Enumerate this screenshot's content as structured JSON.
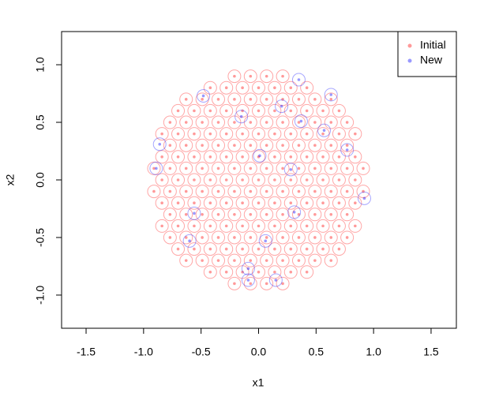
{
  "chart_data": {
    "type": "scatter",
    "xlabel": "x1",
    "ylabel": "x2",
    "xlim": [
      -1.713,
      1.72
    ],
    "ylim": [
      -1.288,
      1.288
    ],
    "xticks": [
      -1.5,
      {
        "value": -1,
        "label": "-1.0"
      },
      -0.5,
      {
        "value": 0,
        "label": "0.0"
      },
      0.5,
      {
        "value": 1,
        "label": "1.0"
      },
      1.5
    ],
    "yticks": [
      {
        "value": -1,
        "label": "-1.0"
      },
      -0.5,
      {
        "value": 0,
        "label": "0.0"
      },
      0.5,
      {
        "value": 1,
        "label": "1.0"
      }
    ],
    "legend": "top-right",
    "series": [
      {
        "name": "Initial",
        "color": "#ff0000",
        "x": [
          -0.21,
          -0.07,
          0.07,
          0.21,
          -0.42,
          -0.28,
          -0.14,
          0,
          0.14,
          0.28,
          0.42,
          -0.63,
          -0.49,
          -0.35,
          -0.21,
          -0.07,
          0.07,
          0.21,
          0.35,
          0.49,
          0.63,
          -0.7,
          -0.56,
          -0.42,
          -0.28,
          -0.14,
          0,
          0.14,
          0.28,
          0.42,
          0.56,
          0.7,
          -0.77,
          -0.63,
          -0.49,
          -0.35,
          -0.21,
          -0.07,
          0.07,
          0.21,
          0.35,
          0.49,
          0.63,
          0.77,
          -0.84,
          -0.7,
          -0.56,
          -0.42,
          -0.28,
          -0.14,
          0,
          0.14,
          0.28,
          0.42,
          0.56,
          0.7,
          0.84,
          -0.77,
          -0.63,
          -0.49,
          -0.35,
          -0.21,
          -0.07,
          0.07,
          0.21,
          0.35,
          0.49,
          0.63,
          0.77,
          -0.84,
          -0.7,
          -0.56,
          -0.42,
          -0.28,
          -0.14,
          0,
          0.14,
          0.28,
          0.42,
          0.56,
          0.7,
          0.84,
          -0.91,
          -0.77,
          -0.63,
          -0.49,
          -0.35,
          -0.21,
          -0.07,
          0.07,
          0.21,
          0.35,
          0.49,
          0.63,
          0.77,
          0.91,
          -0.84,
          -0.7,
          -0.56,
          -0.42,
          -0.28,
          -0.14,
          0,
          0.14,
          0.28,
          0.42,
          0.56,
          0.7,
          0.84,
          -0.91,
          -0.77,
          -0.63,
          -0.49,
          -0.35,
          -0.21,
          -0.07,
          0.07,
          0.21,
          0.35,
          0.49,
          0.63,
          0.77,
          0.91,
          -0.84,
          -0.7,
          -0.56,
          -0.42,
          -0.28,
          -0.14,
          0,
          0.14,
          0.28,
          0.42,
          0.56,
          0.7,
          0.84,
          -0.77,
          -0.63,
          -0.49,
          -0.35,
          -0.21,
          -0.07,
          0.07,
          0.21,
          0.35,
          0.49,
          0.63,
          0.77,
          -0.84,
          -0.7,
          -0.56,
          -0.42,
          -0.28,
          -0.14,
          0,
          0.14,
          0.28,
          0.42,
          0.56,
          0.7,
          0.84,
          -0.77,
          -0.63,
          -0.49,
          -0.35,
          -0.21,
          -0.07,
          0.07,
          0.21,
          0.35,
          0.49,
          0.63,
          0.77,
          -0.7,
          -0.56,
          -0.42,
          -0.28,
          -0.14,
          0,
          0.14,
          0.28,
          0.42,
          0.56,
          0.7,
          -0.63,
          -0.49,
          -0.35,
          -0.21,
          -0.07,
          0.07,
          0.21,
          0.35,
          0.49,
          0.63,
          -0.42,
          -0.28,
          -0.14,
          0,
          0.14,
          0.28,
          0.42,
          -0.21,
          -0.07,
          0.07,
          0.21
        ],
        "values": [
          0.9,
          0.9,
          0.9,
          0.9,
          0.8,
          0.8,
          0.8,
          0.8,
          0.8,
          0.8,
          0.8,
          0.7,
          0.7,
          0.7,
          0.7,
          0.7,
          0.7,
          0.7,
          0.7,
          0.7,
          0.7,
          0.6,
          0.6,
          0.6,
          0.6,
          0.6,
          0.6,
          0.6,
          0.6,
          0.6,
          0.6,
          0.6,
          0.5,
          0.5,
          0.5,
          0.5,
          0.5,
          0.5,
          0.5,
          0.5,
          0.5,
          0.5,
          0.5,
          0.5,
          0.4,
          0.4,
          0.4,
          0.4,
          0.4,
          0.4,
          0.4,
          0.4,
          0.4,
          0.4,
          0.4,
          0.4,
          0.4,
          0.3,
          0.3,
          0.3,
          0.3,
          0.3,
          0.3,
          0.3,
          0.3,
          0.3,
          0.3,
          0.3,
          0.3,
          0.2,
          0.2,
          0.2,
          0.2,
          0.2,
          0.2,
          0.2,
          0.2,
          0.2,
          0.2,
          0.2,
          0.2,
          0.2,
          0.1,
          0.1,
          0.1,
          0.1,
          0.1,
          0.1,
          0.1,
          0.1,
          0.1,
          0.1,
          0.1,
          0.1,
          0.1,
          0.1,
          0,
          0,
          0,
          0,
          0,
          0,
          0,
          0,
          0,
          0,
          0,
          0,
          0,
          -0.1,
          -0.1,
          -0.1,
          -0.1,
          -0.1,
          -0.1,
          -0.1,
          -0.1,
          -0.1,
          -0.1,
          -0.1,
          -0.1,
          -0.1,
          -0.1,
          -0.2,
          -0.2,
          -0.2,
          -0.2,
          -0.2,
          -0.2,
          -0.2,
          -0.2,
          -0.2,
          -0.2,
          -0.2,
          -0.2,
          -0.2,
          -0.3,
          -0.3,
          -0.3,
          -0.3,
          -0.3,
          -0.3,
          -0.3,
          -0.3,
          -0.3,
          -0.3,
          -0.3,
          -0.3,
          -0.4,
          -0.4,
          -0.4,
          -0.4,
          -0.4,
          -0.4,
          -0.4,
          -0.4,
          -0.4,
          -0.4,
          -0.4,
          -0.4,
          -0.4,
          -0.5,
          -0.5,
          -0.5,
          -0.5,
          -0.5,
          -0.5,
          -0.5,
          -0.5,
          -0.5,
          -0.5,
          -0.5,
          -0.5,
          -0.6,
          -0.6,
          -0.6,
          -0.6,
          -0.6,
          -0.6,
          -0.6,
          -0.6,
          -0.6,
          -0.6,
          -0.6,
          -0.7,
          -0.7,
          -0.7,
          -0.7,
          -0.7,
          -0.7,
          -0.7,
          -0.7,
          -0.7,
          -0.7,
          -0.8,
          -0.8,
          -0.8,
          -0.8,
          -0.8,
          -0.8,
          -0.8,
          -0.9,
          -0.9,
          -0.9,
          -0.9
        ]
      },
      {
        "name": "New",
        "color": "#0000ff",
        "x": [
          0.35,
          0.63,
          -0.48,
          -0.15,
          0.2,
          0.37,
          0.57,
          0.77,
          -0.86,
          -0.89,
          0.01,
          0.28,
          0.92,
          -0.56,
          0.31,
          -0.6,
          0.06,
          -0.09,
          -0.09,
          0.15
        ],
        "values": [
          0.87,
          0.74,
          0.73,
          0.55,
          0.64,
          0.51,
          0.43,
          0.26,
          0.31,
          0.1,
          0.21,
          0.09,
          -0.16,
          -0.29,
          -0.28,
          -0.53,
          -0.53,
          -0.77,
          -0.87,
          -0.87
        ]
      }
    ]
  }
}
